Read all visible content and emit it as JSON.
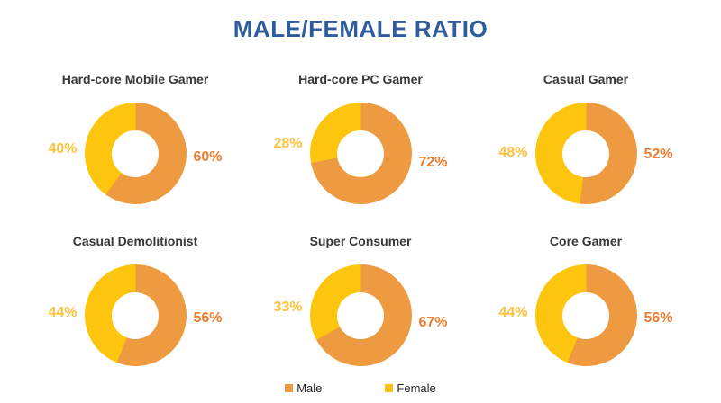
{
  "page_title": "MALE/FEMALE RATIO",
  "colors": {
    "title_blue": "#2F5B9F",
    "male_fill": "#EE9A40",
    "female_fill": "#FDC50D",
    "male_label_text": "#ED7D31",
    "female_label_text": "#FDC13C",
    "chart_title_text": "#383838",
    "legend_text": "#262626"
  },
  "legend": {
    "items": [
      {
        "label": "Male",
        "color": "#EE9A40"
      },
      {
        "label": "Female",
        "color": "#FDC50D"
      }
    ]
  },
  "chart_data": {
    "type": "pie",
    "subtype": "donut",
    "title": "MALE/FEMALE RATIO",
    "series_names": [
      "Male",
      "Female"
    ],
    "legend_position": "bottom",
    "value_unit": "%",
    "slice_order": "male-clockwise-from-top",
    "charts": [
      {
        "title": "Hard-core Mobile Gamer",
        "male": 60,
        "female": 40
      },
      {
        "title": "Hard-core PC Gamer",
        "male": 72,
        "female": 28
      },
      {
        "title": "Casual Gamer",
        "male": 52,
        "female": 48
      },
      {
        "title": "Casual Demolitionist",
        "male": 56,
        "female": 44
      },
      {
        "title": "Super Consumer",
        "male": 67,
        "female": 33
      },
      {
        "title": "Core Gamer",
        "male": 56,
        "female": 44
      }
    ]
  }
}
